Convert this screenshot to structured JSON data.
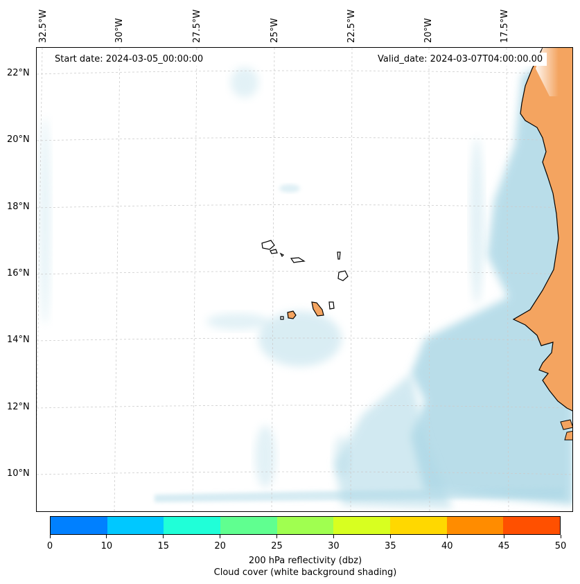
{
  "map": {
    "start_date": "Start date: 2024-03-05_00:00:00",
    "valid_date": "Valid_date: 2024-03-07T04:00:00.00",
    "lon_labels": [
      "32.5°W",
      "30°W",
      "27.5°W",
      "25°W",
      "22.5°W",
      "20°W",
      "17.5°W"
    ],
    "lat_labels": [
      "22°N",
      "20°N",
      "18°N",
      "16°N",
      "14°N",
      "12°N",
      "10°N"
    ],
    "colors": {
      "land": "#f4a460",
      "cloud": "#add8e6",
      "coastline": "#000000",
      "gridline": "#cccccc"
    }
  },
  "colorbar": {
    "ticks": [
      "0",
      "10",
      "15",
      "20",
      "25",
      "30",
      "35",
      "40",
      "45",
      "50"
    ],
    "colors": [
      "#0080ff",
      "#00c8ff",
      "#20ffd8",
      "#60ff90",
      "#a0ff50",
      "#d8ff20",
      "#ffd800",
      "#ff8c00",
      "#ff5000"
    ],
    "label_line1": "200 hPa reflectivity (dbz)",
    "label_line2": "Cloud cover (white background shading)"
  }
}
